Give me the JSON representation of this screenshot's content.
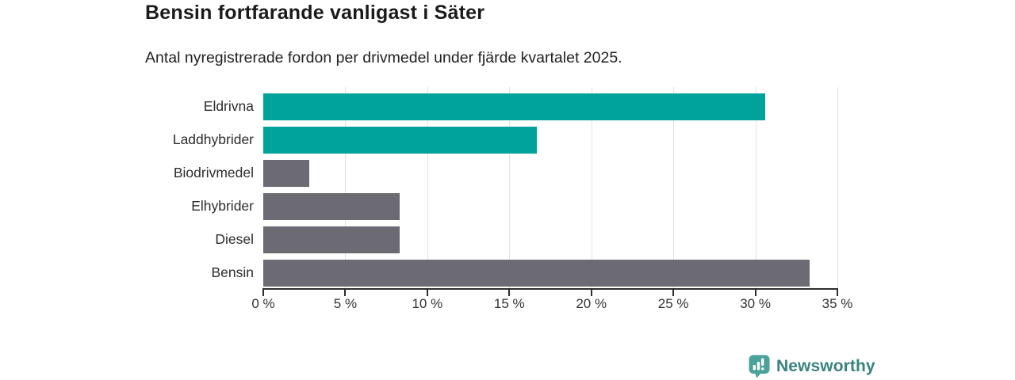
{
  "title": "Bensin fortfarande vanligast i Säter",
  "subtitle": "Antal nyregistrerade fordon per drivmedel under fjärde kvartalet 2025.",
  "chart_data": {
    "type": "bar",
    "orientation": "horizontal",
    "title": "Bensin fortfarande vanligast i Säter",
    "subtitle": "Antal nyregistrerade fordon per drivmedel under fjärde kvartalet 2025.",
    "categories": [
      "Eldrivna",
      "Laddhybrider",
      "Biodrivmedel",
      "Elhybrider",
      "Diesel",
      "Bensin"
    ],
    "values": [
      30.6,
      16.7,
      2.8,
      8.3,
      8.3,
      33.3
    ],
    "bar_colors": [
      "#00a39b",
      "#00a39b",
      "#6c6a72",
      "#6c6a72",
      "#6c6a72",
      "#6c6a72"
    ],
    "highlight_color": "#00a39b",
    "default_color": "#6c6a72",
    "xlim": [
      0,
      35
    ],
    "x_tick_values": [
      0,
      5,
      10,
      15,
      20,
      25,
      30,
      35
    ],
    "x_tick_labels": [
      "0 %",
      "5 %",
      "10 %",
      "15 %",
      "20 %",
      "25 %",
      "30 %",
      "35 %"
    ],
    "xlabel": "",
    "ylabel": "",
    "grid": true,
    "gridline_color": "#e2e2e2",
    "unit": "%"
  },
  "branding": {
    "logo_text": "Newsworthy",
    "logo_text_color": "#38837e",
    "logo_icon_color": "#4ba29a",
    "logo_icon": "bar-chart-speech-bubble-icon"
  }
}
